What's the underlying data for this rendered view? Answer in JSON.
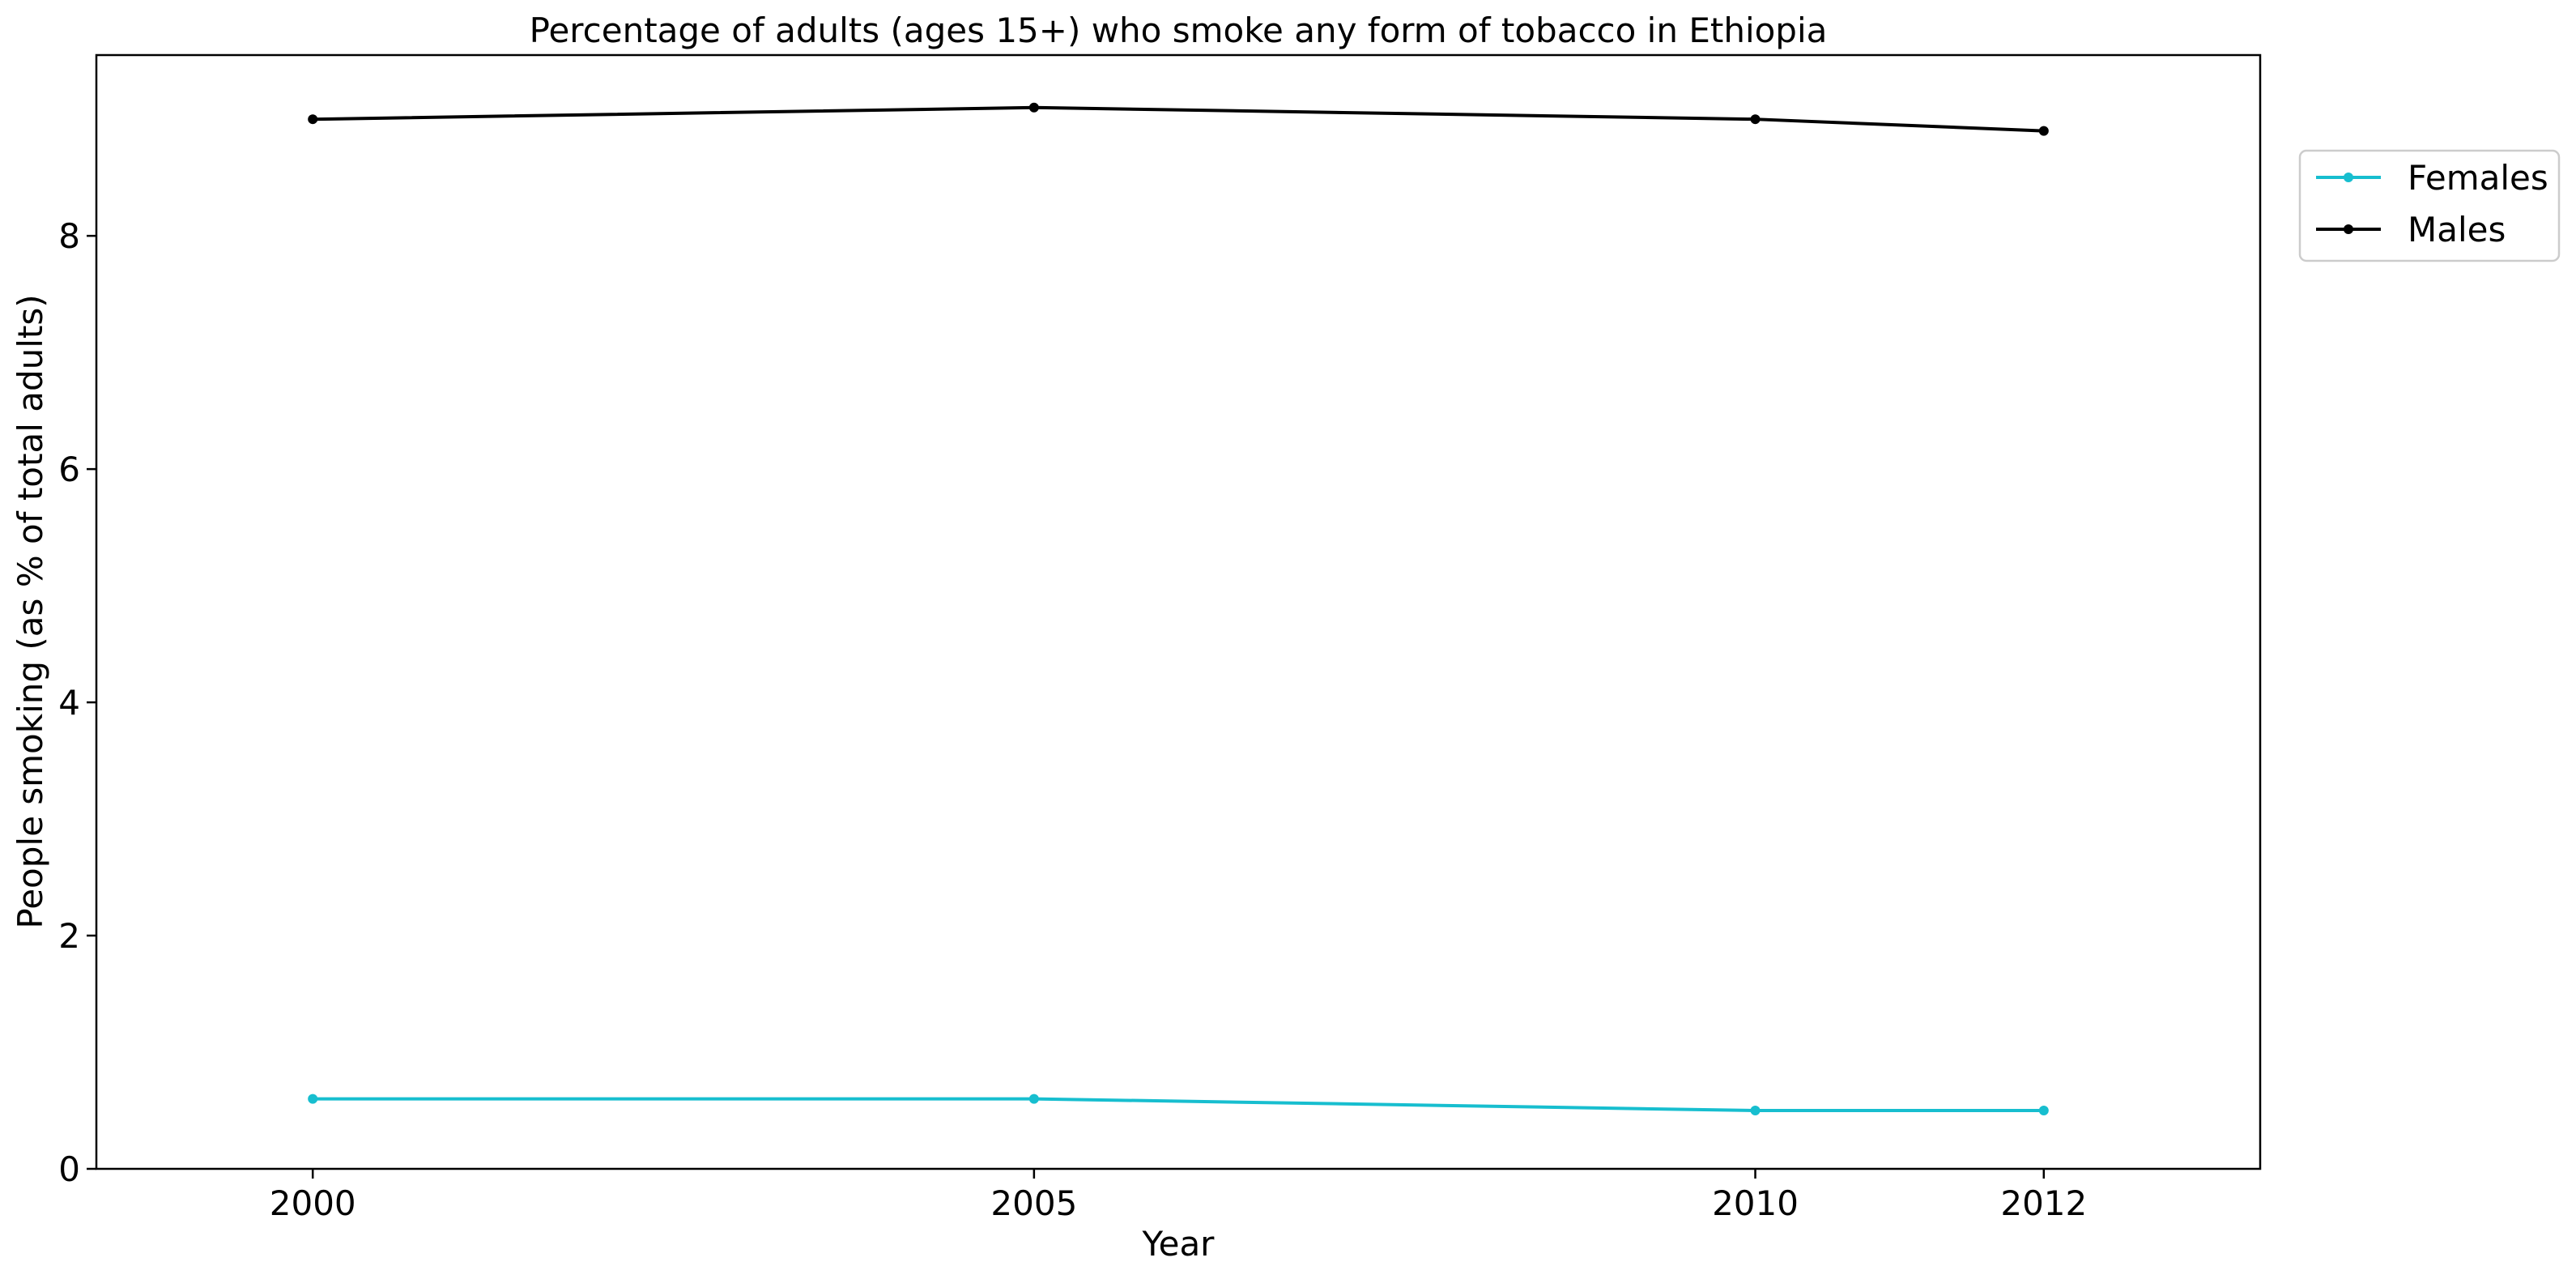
{
  "chart_data": {
    "type": "line",
    "title": "Percentage of adults (ages 15+) who smoke any form of tobacco in Ethiopia",
    "xlabel": "Year",
    "ylabel": "People smoking (as % of total adults)",
    "x": [
      2000,
      2005,
      2010,
      2012
    ],
    "x_ticks": [
      "2000",
      "2005",
      "2010",
      "2012"
    ],
    "y_ticks": [
      "0",
      "2",
      "4",
      "6",
      "8"
    ],
    "ylim": [
      0,
      9.55
    ],
    "grid": false,
    "legend": "upper right, outside plot area",
    "series": [
      {
        "name": "Females",
        "color": "#17becf",
        "values": [
          0.6,
          0.6,
          0.5,
          0.5
        ]
      },
      {
        "name": "Males",
        "color": "#000000",
        "values": [
          9.0,
          9.1,
          9.0,
          8.9
        ]
      }
    ]
  }
}
